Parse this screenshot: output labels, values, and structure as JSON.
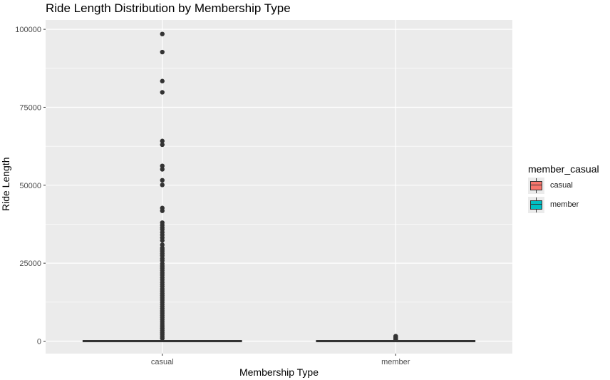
{
  "chart_data": {
    "type": "boxplot",
    "title": "Ride Length Distribution by Membership Type",
    "xlabel": "Membership Type",
    "ylabel": "Ride Length",
    "categories": [
      "casual",
      "member"
    ],
    "ylim": [
      -4000,
      103000
    ],
    "yticks": [
      0,
      25000,
      50000,
      75000,
      100000
    ],
    "ytick_labels": [
      "0",
      "25000",
      "50000",
      "75000",
      "100000"
    ],
    "grid": true,
    "legend": {
      "title": "member_casual",
      "placement": "right",
      "entries": [
        {
          "name": "casual",
          "color": "#F8766D"
        },
        {
          "name": "member",
          "color": "#00BFC4"
        }
      ]
    },
    "boxes": [
      {
        "category": "casual",
        "fill": "#F8766D",
        "q1": 0,
        "median": 0,
        "q3": 0,
        "whisker_low": 0,
        "whisker_high": 0,
        "outliers": [
          98500,
          92700,
          83400,
          79800,
          64200,
          63000,
          56200,
          55100,
          51600,
          50100,
          42700,
          41800,
          38000,
          37200,
          36400,
          35800,
          34900,
          34100,
          33200,
          32300,
          30900,
          29900,
          29400,
          28800,
          28100,
          27400,
          26500,
          25800,
          24800,
          24100,
          23400,
          22700,
          21900,
          21200,
          20400,
          19700,
          18900,
          18200,
          17500,
          16700,
          16000,
          15300,
          14600,
          13900,
          13200,
          12500,
          11800,
          11100,
          10400,
          9700,
          9000,
          8300,
          7600,
          6900,
          6200,
          5500,
          4800,
          4100,
          3400,
          2700,
          2100,
          1500,
          900
        ]
      },
      {
        "category": "member",
        "fill": "#00BFC4",
        "q1": 0,
        "median": 0,
        "q3": 0,
        "whisker_low": 0,
        "whisker_high": 0,
        "outliers": [
          1600,
          1350,
          1100,
          850,
          600,
          400
        ]
      }
    ]
  }
}
